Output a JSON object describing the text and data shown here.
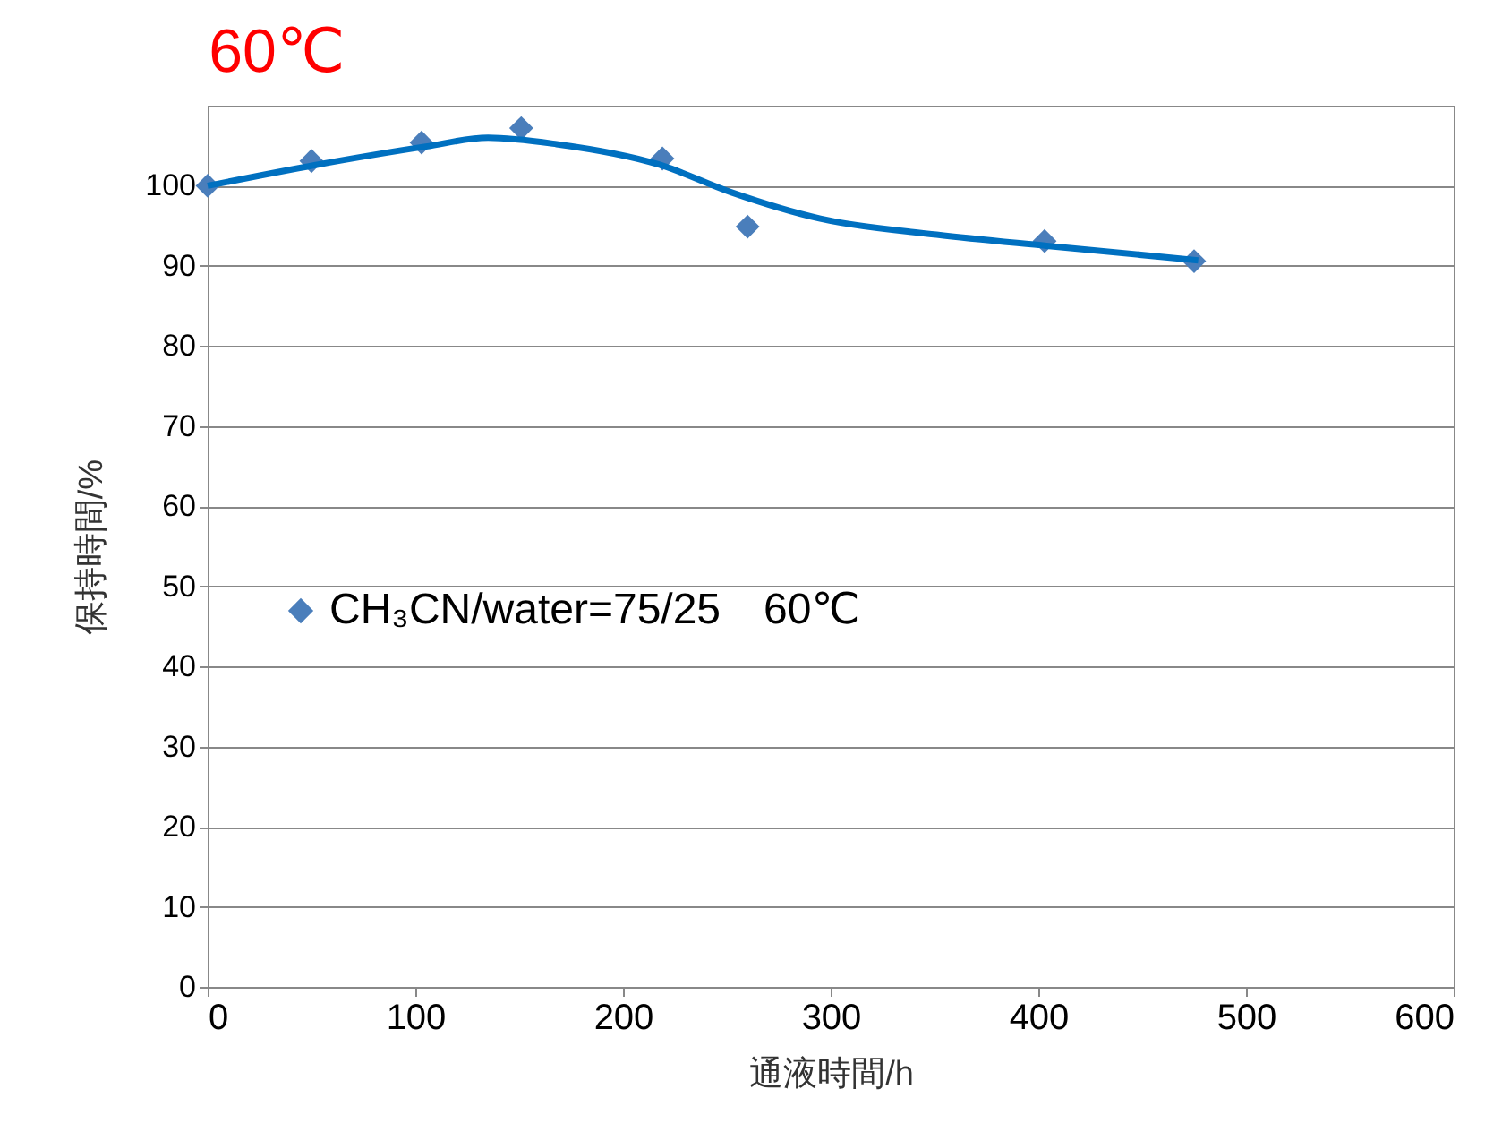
{
  "chart_data": {
    "type": "scatter",
    "title": "60℃",
    "xlabel": "通液時間/h",
    "ylabel": "保持時間/%",
    "xlim": [
      0,
      600
    ],
    "xticks": [
      0,
      100,
      200,
      300,
      400,
      500,
      600
    ],
    "ylim": [
      0,
      110
    ],
    "yticks": [
      0,
      10,
      20,
      30,
      40,
      50,
      60,
      70,
      80,
      90,
      100
    ],
    "grid": "y",
    "legend": "left",
    "series": [
      {
        "name": "CH₃CN/water=75/25　60℃",
        "color": "#4a7ebb",
        "marker": "diamond",
        "x": [
          0,
          50,
          103,
          151,
          219,
          260,
          403,
          475
        ],
        "values": [
          100,
          103.1,
          105.4,
          107.2,
          103.4,
          94.9,
          93.1,
          90.6
        ]
      },
      {
        "type": "line",
        "color": "#0070c0",
        "marker": "none",
        "x": [
          0,
          52,
          105,
          135,
          168,
          218,
          252,
          295,
          351,
          404,
          477
        ],
        "values": [
          100,
          102.6,
          104.9,
          106,
          105.2,
          102.6,
          99.2,
          95.9,
          93.9,
          92.5,
          90.7
        ]
      }
    ]
  }
}
